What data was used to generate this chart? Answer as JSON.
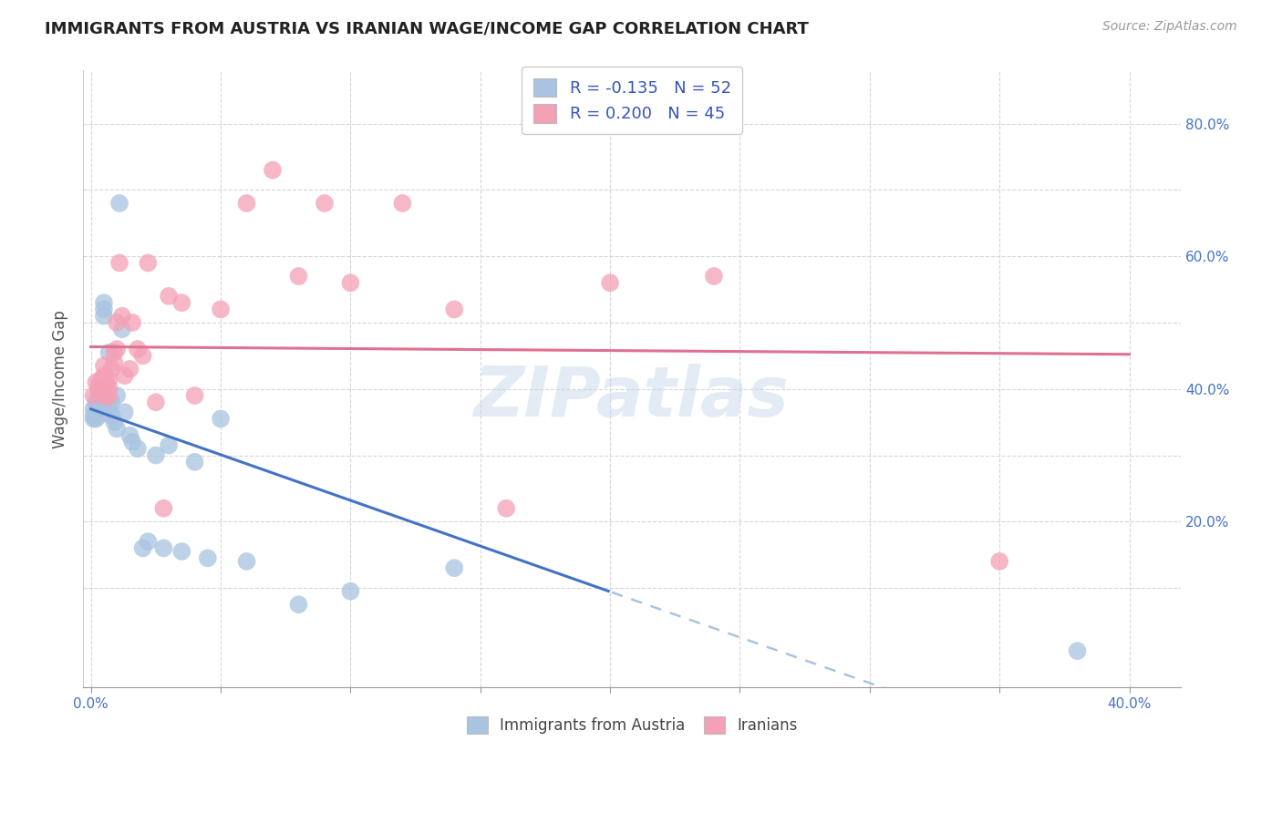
{
  "title": "IMMIGRANTS FROM AUSTRIA VS IRANIAN WAGE/INCOME GAP CORRELATION CHART",
  "source": "Source: ZipAtlas.com",
  "ylabel": "Wage/Income Gap",
  "legend_austria": "Immigrants from Austria",
  "legend_iranians": "Iranians",
  "austria_color": "#a8c4e0",
  "iran_color": "#f4a0b5",
  "trendline_austria_solid_color": "#4472c4",
  "trendline_austria_dash_color": "#a8c4e0",
  "trendline_iran_color": "#e07090",
  "watermark": "ZIPatlas",
  "xlim": [
    -0.003,
    0.42
  ],
  "ylim": [
    -0.05,
    0.88
  ],
  "xtick_positions": [
    0.0,
    0.05,
    0.1,
    0.15,
    0.2,
    0.25,
    0.3,
    0.35,
    0.4
  ],
  "xtick_labels": [
    "0.0%",
    "",
    "",
    "",
    "",
    "",
    "",
    "",
    "40.0%"
  ],
  "ytick_vals": [
    0.1,
    0.2,
    0.3,
    0.4,
    0.5,
    0.6,
    0.7,
    0.8
  ],
  "ytick_right_labels": [
    "",
    "20.0%",
    "",
    "40.0%",
    "",
    "60.0%",
    "",
    "80.0%"
  ],
  "austria_x": [
    0.001,
    0.001,
    0.001,
    0.002,
    0.002,
    0.002,
    0.002,
    0.003,
    0.003,
    0.003,
    0.003,
    0.003,
    0.004,
    0.004,
    0.004,
    0.004,
    0.005,
    0.005,
    0.005,
    0.005,
    0.005,
    0.006,
    0.006,
    0.006,
    0.006,
    0.007,
    0.007,
    0.008,
    0.008,
    0.009,
    0.01,
    0.01,
    0.011,
    0.012,
    0.013,
    0.015,
    0.016,
    0.018,
    0.02,
    0.022,
    0.025,
    0.028,
    0.03,
    0.035,
    0.04,
    0.045,
    0.05,
    0.06,
    0.08,
    0.1,
    0.14,
    0.38
  ],
  "austria_y": [
    0.37,
    0.36,
    0.355,
    0.38,
    0.375,
    0.365,
    0.355,
    0.39,
    0.385,
    0.375,
    0.368,
    0.36,
    0.4,
    0.392,
    0.38,
    0.37,
    0.53,
    0.52,
    0.51,
    0.38,
    0.37,
    0.395,
    0.388,
    0.375,
    0.365,
    0.455,
    0.37,
    0.38,
    0.36,
    0.35,
    0.39,
    0.34,
    0.68,
    0.49,
    0.365,
    0.33,
    0.32,
    0.31,
    0.16,
    0.17,
    0.3,
    0.16,
    0.315,
    0.155,
    0.29,
    0.145,
    0.355,
    0.14,
    0.075,
    0.095,
    0.13,
    0.005
  ],
  "iran_x": [
    0.001,
    0.002,
    0.003,
    0.003,
    0.004,
    0.004,
    0.005,
    0.005,
    0.005,
    0.006,
    0.006,
    0.006,
    0.007,
    0.007,
    0.007,
    0.008,
    0.009,
    0.009,
    0.01,
    0.01,
    0.011,
    0.012,
    0.013,
    0.015,
    0.016,
    0.018,
    0.02,
    0.022,
    0.025,
    0.028,
    0.03,
    0.035,
    0.04,
    0.05,
    0.06,
    0.07,
    0.08,
    0.09,
    0.1,
    0.12,
    0.14,
    0.16,
    0.2,
    0.24,
    0.35
  ],
  "iran_y": [
    0.39,
    0.41,
    0.405,
    0.395,
    0.415,
    0.4,
    0.435,
    0.42,
    0.405,
    0.41,
    0.4,
    0.388,
    0.415,
    0.402,
    0.39,
    0.43,
    0.455,
    0.44,
    0.5,
    0.46,
    0.59,
    0.51,
    0.42,
    0.43,
    0.5,
    0.46,
    0.45,
    0.59,
    0.38,
    0.22,
    0.54,
    0.53,
    0.39,
    0.52,
    0.68,
    0.73,
    0.57,
    0.68,
    0.56,
    0.68,
    0.52,
    0.22,
    0.56,
    0.57,
    0.14
  ],
  "background_color": "#ffffff",
  "grid_color": "#cccccc",
  "austria_trendline_solid_end": 0.2
}
